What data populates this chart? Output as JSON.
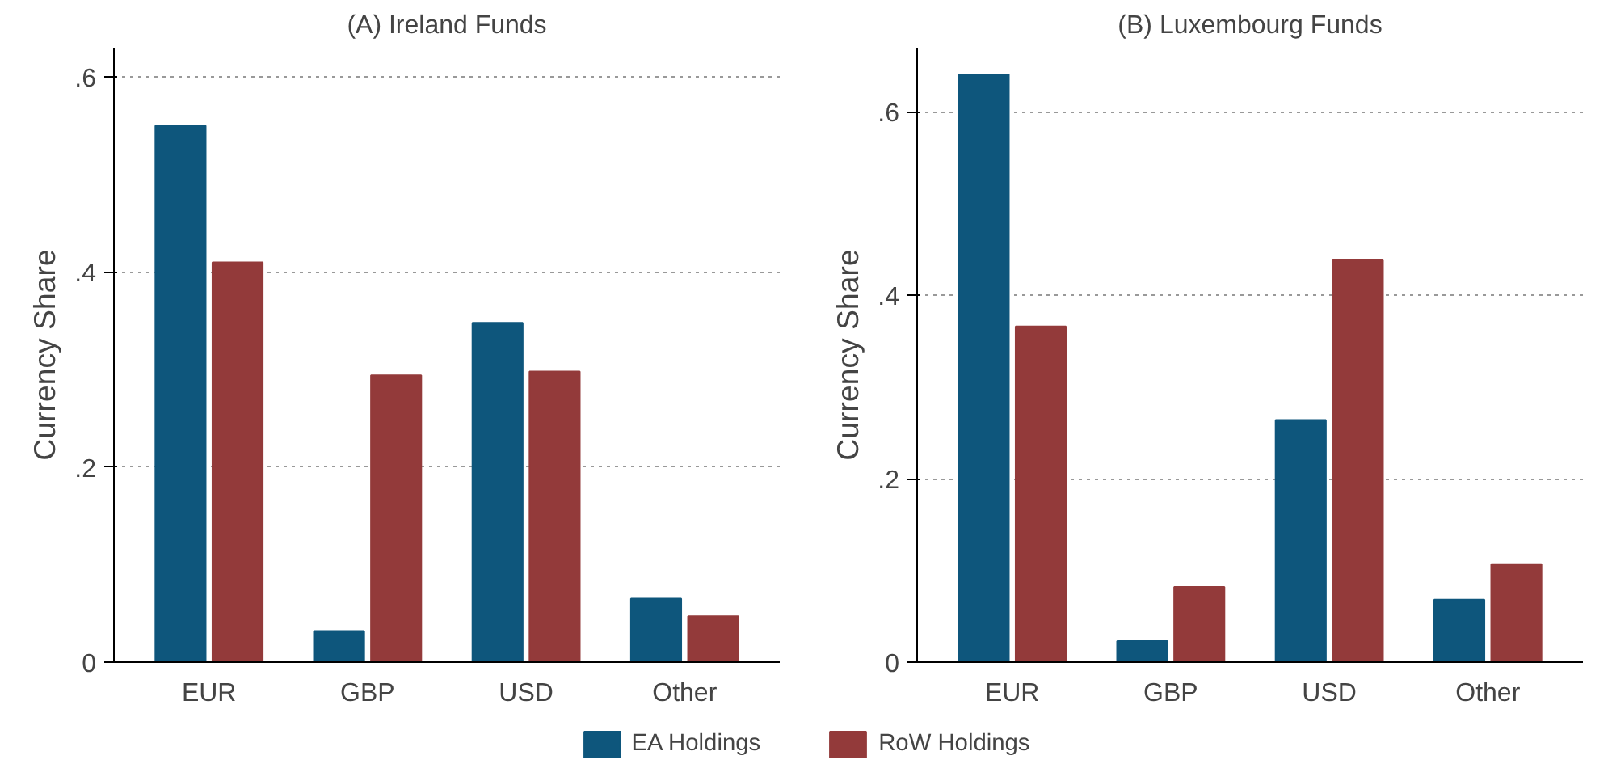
{
  "chart_data": [
    {
      "type": "bar",
      "title": "(A) Ireland Funds",
      "ylabel": "Currency Share",
      "categories": [
        "EUR",
        "GBP",
        "USD",
        "Other"
      ],
      "series": [
        {
          "name": "EA Holdings",
          "color": "#0e567c",
          "values": [
            0.55,
            0.032,
            0.348,
            0.065
          ]
        },
        {
          "name": "RoW Holdings",
          "color": "#933a3a",
          "values": [
            0.41,
            0.294,
            0.298,
            0.047
          ]
        }
      ],
      "ylim": [
        0,
        0.63
      ],
      "yticks": [
        {
          "value": 0,
          "label": "0"
        },
        {
          "value": 0.2,
          "label": ".2"
        },
        {
          "value": 0.4,
          "label": ".4"
        },
        {
          "value": 0.6,
          "label": ".6"
        }
      ],
      "grid": "y",
      "legend": "bottom"
    },
    {
      "type": "bar",
      "title": "(B) Luxembourg Funds",
      "ylabel": "Currency Share",
      "categories": [
        "EUR",
        "GBP",
        "USD",
        "Other"
      ],
      "series": [
        {
          "color": "#0e567c",
          "values": [
            0.641,
            0.023,
            0.264,
            0.068
          ]
        },
        {
          "color": "#933a3a",
          "values": [
            0.366,
            0.082,
            0.439,
            0.107
          ]
        }
      ],
      "ylim": [
        0,
        0.67
      ],
      "yticks": [
        {
          "value": 0,
          "label": "0"
        },
        {
          "value": 0.2,
          "label": ".2"
        },
        {
          "value": 0.4,
          "label": ".4"
        },
        {
          "value": 0.6,
          "label": ".6"
        }
      ],
      "grid": "y"
    }
  ]
}
